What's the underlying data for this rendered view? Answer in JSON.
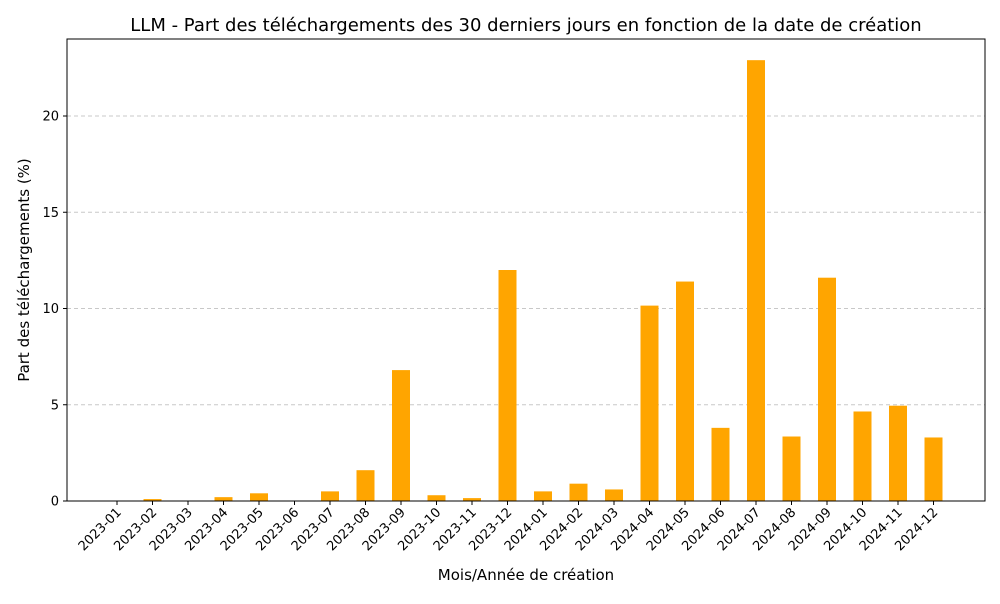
{
  "chart_data": {
    "type": "bar",
    "title": "LLM - Part des téléchargements des 30 derniers jours en fonction de la date de création",
    "xlabel": "Mois/Année de création",
    "ylabel": "Part des téléchargements (%)",
    "categories": [
      "2023-01",
      "2023-02",
      "2023-03",
      "2023-04",
      "2023-05",
      "2023-06",
      "2023-07",
      "2023-08",
      "2023-09",
      "2023-10",
      "2023-11",
      "2023-12",
      "2024-01",
      "2024-02",
      "2024-03",
      "2024-04",
      "2024-05",
      "2024-06",
      "2024-07",
      "2024-08",
      "2024-09",
      "2024-10",
      "2024-11",
      "2024-12"
    ],
    "values": [
      0.0,
      0.1,
      0.0,
      0.2,
      0.4,
      0.0,
      0.5,
      1.6,
      6.8,
      0.3,
      0.15,
      12.0,
      0.5,
      0.9,
      0.6,
      10.15,
      11.4,
      3.8,
      22.9,
      3.35,
      11.6,
      4.65,
      4.95,
      3.3
    ],
    "ylim": [
      0,
      24
    ],
    "yticks": [
      0,
      5,
      10,
      15,
      20
    ],
    "grid": "y, dashed",
    "bar_color": "#ffa500"
  }
}
